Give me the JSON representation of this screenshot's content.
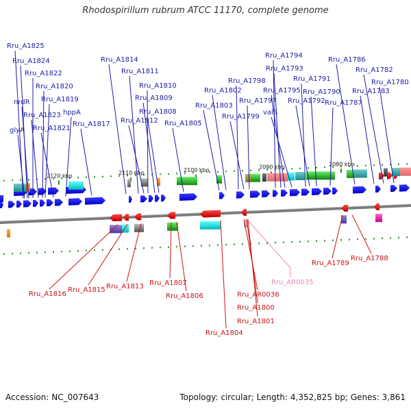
{
  "title": "Rhodospirillum rubrum ATCC 11170, complete genome",
  "footer": {
    "accession": "Accession: NC_007643",
    "summary": "Topology: circular; Length: 4,352,825 bp; Genes: 3,861"
  },
  "colors": {
    "forward_label": "#1a1aa6",
    "reverse_label": "#cc1111",
    "rna_label": "#ee88bb",
    "backbone": "#7a7a7a"
  },
  "ticks": [
    "2120 kbp",
    "2110 kbp",
    "2100 kbp",
    "2090 kbp",
    "2080 kbp"
  ],
  "forward_genes": [
    "Rru_A1825",
    "Rru_A1824",
    "Rru_A1822",
    "Rru_A1820",
    "nrdR",
    "Rru_A1819",
    "Rru_A1823",
    "hppA",
    "glyA",
    "Rru_A1821",
    "Rru_A1817",
    "Rru_A1814",
    "Rru_A1811",
    "Rru_A1810",
    "Rru_A1809",
    "Rru_A1808",
    "Rru_A1812",
    "Rru_A1805",
    "Rru_A1803",
    "Rru_A1802",
    "Rru_A1798",
    "Rru_A1797",
    "Rru_A1799",
    "Rru_A1794",
    "Rru_A1793",
    "Rru_A1795",
    "valS",
    "Rru_A1791",
    "Rru_A1792",
    "Rru_A1790",
    "Rru_A1787",
    "Rru_A1786",
    "Rru_A1782",
    "Rru_A1783",
    "Rru_A1780"
  ],
  "reverse_genes": [
    "Rru_A1816",
    "Rru_A1815",
    "Rru_A1813",
    "Rru_A1807",
    "Rru_A1806",
    "Rru_AR0036",
    "Rru_A1800",
    "Rru_A1801",
    "Rru_A1804",
    "Rru_A1789",
    "Rru_A1788"
  ],
  "rna_genes": [
    "Rru_AR0035"
  ]
}
